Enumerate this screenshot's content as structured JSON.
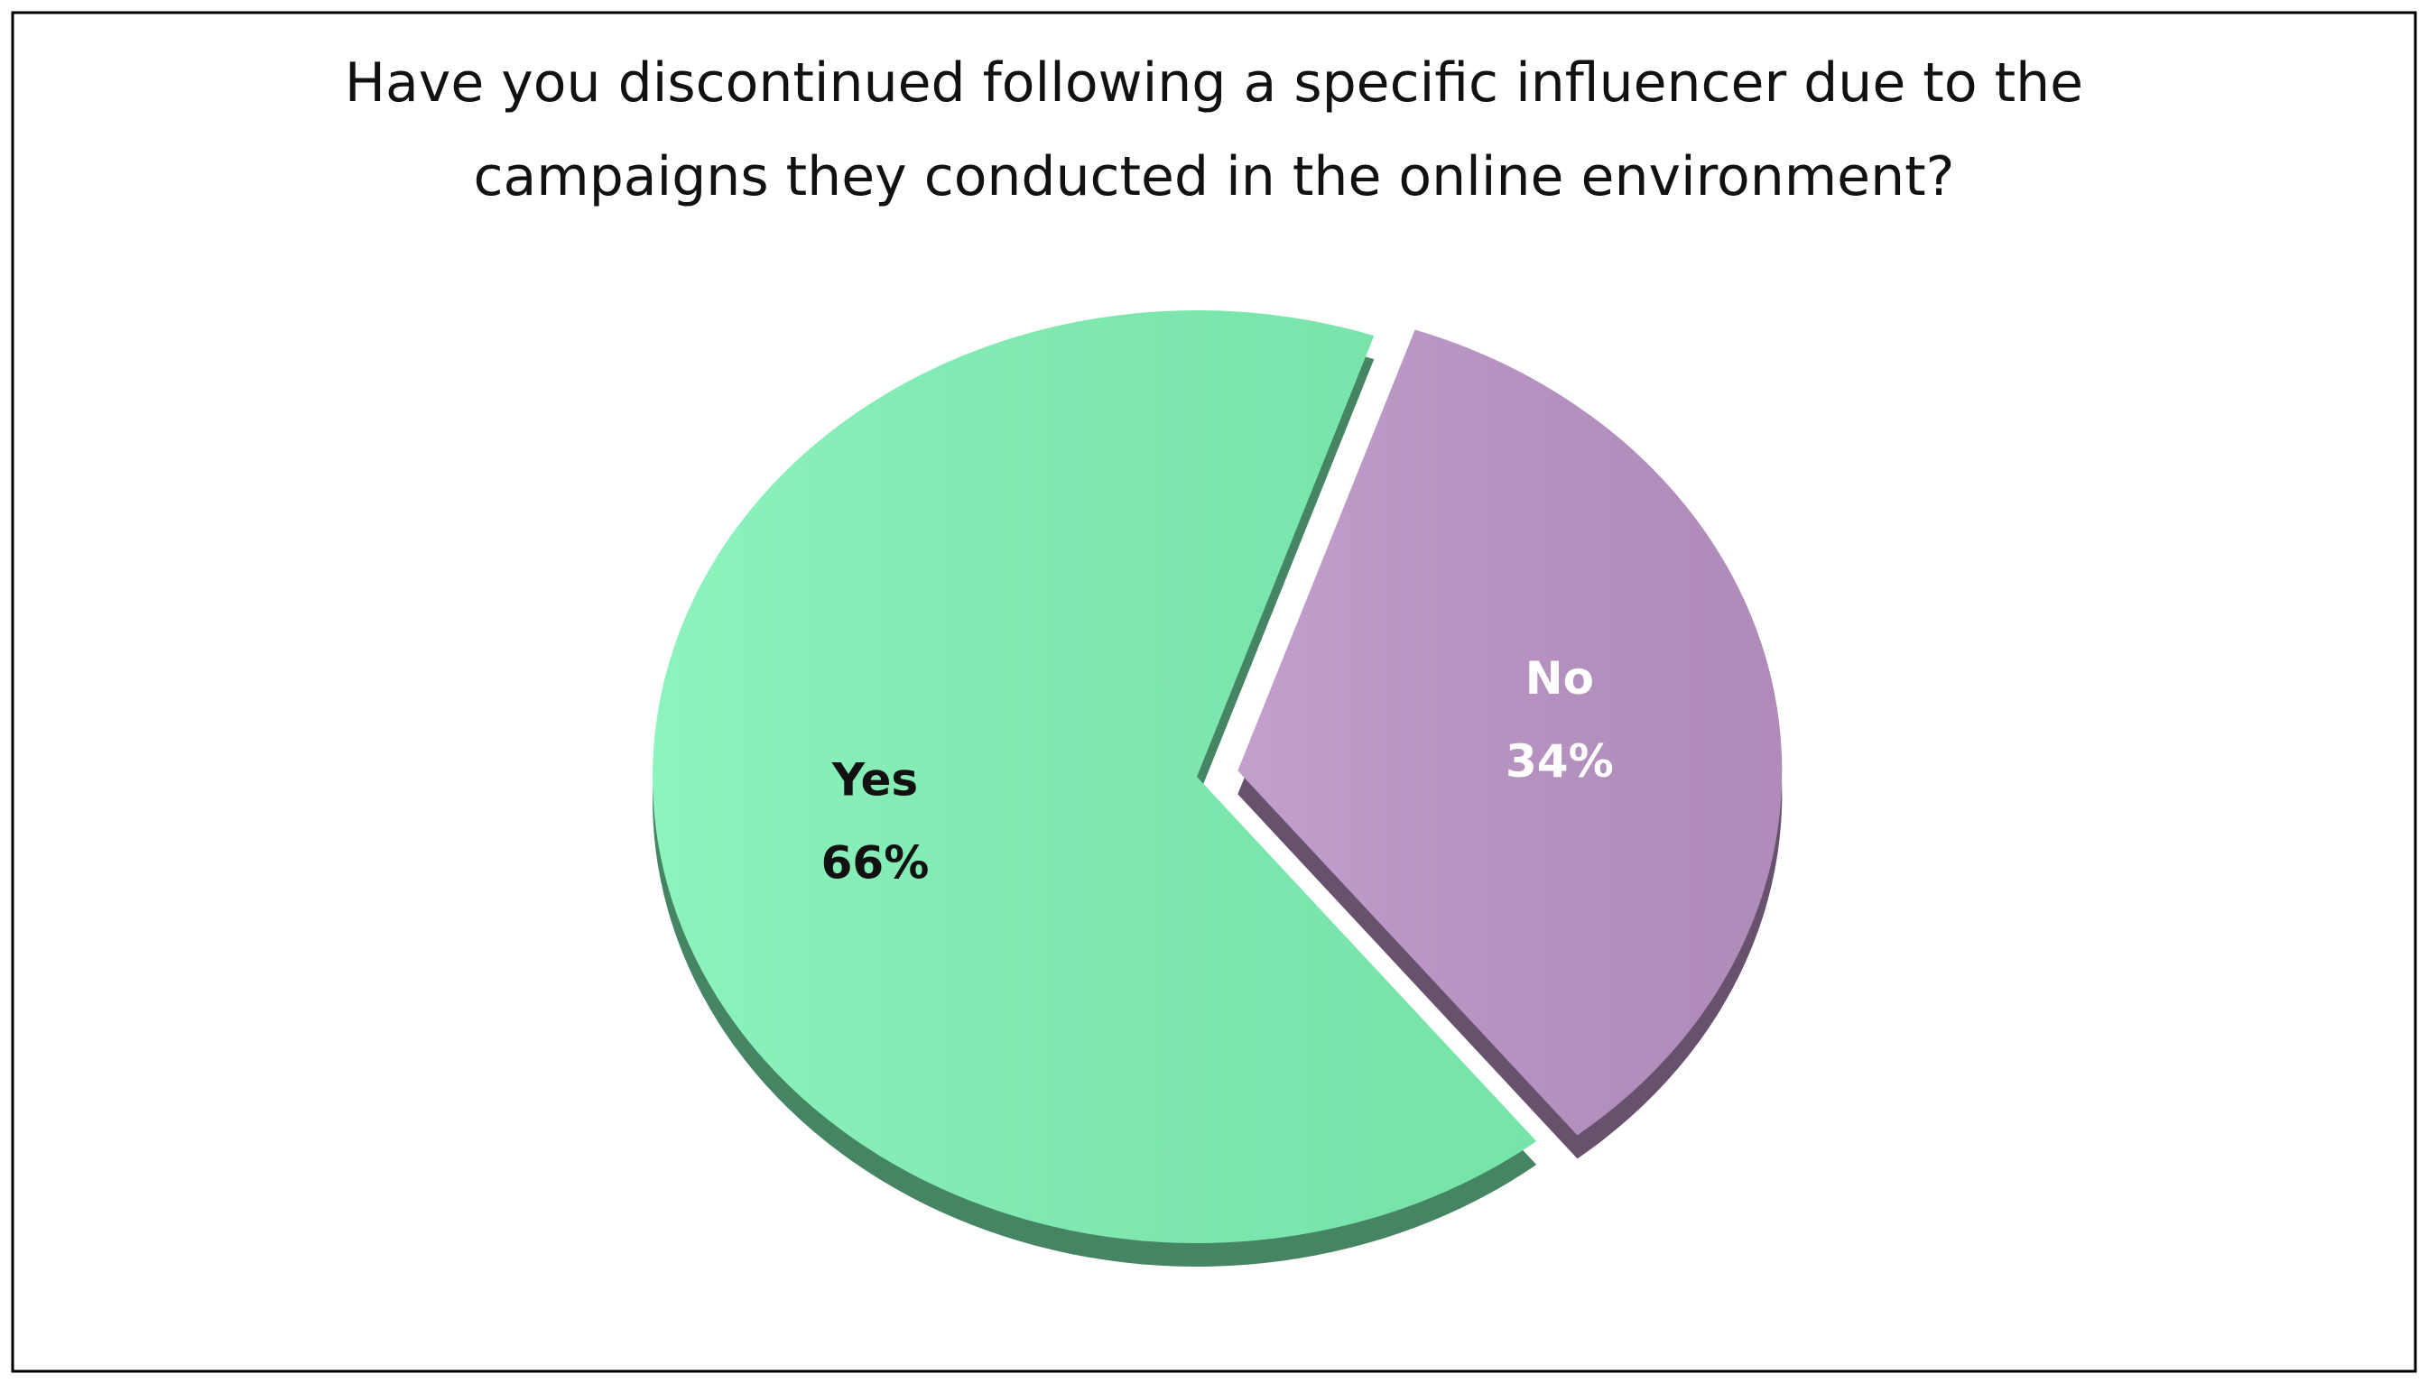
{
  "chart_data": {
    "type": "pie",
    "title": "Have you discontinued following a specific influencer due to the campaigns they conducted in the online environment?",
    "categories": [
      "Yes",
      "No"
    ],
    "values": [
      66,
      34
    ],
    "value_labels": [
      "66%",
      "34%"
    ],
    "colors": [
      "#7ef2b4",
      "#bb94c6"
    ],
    "label_colors": [
      "#111111",
      "#ffffff"
    ]
  }
}
